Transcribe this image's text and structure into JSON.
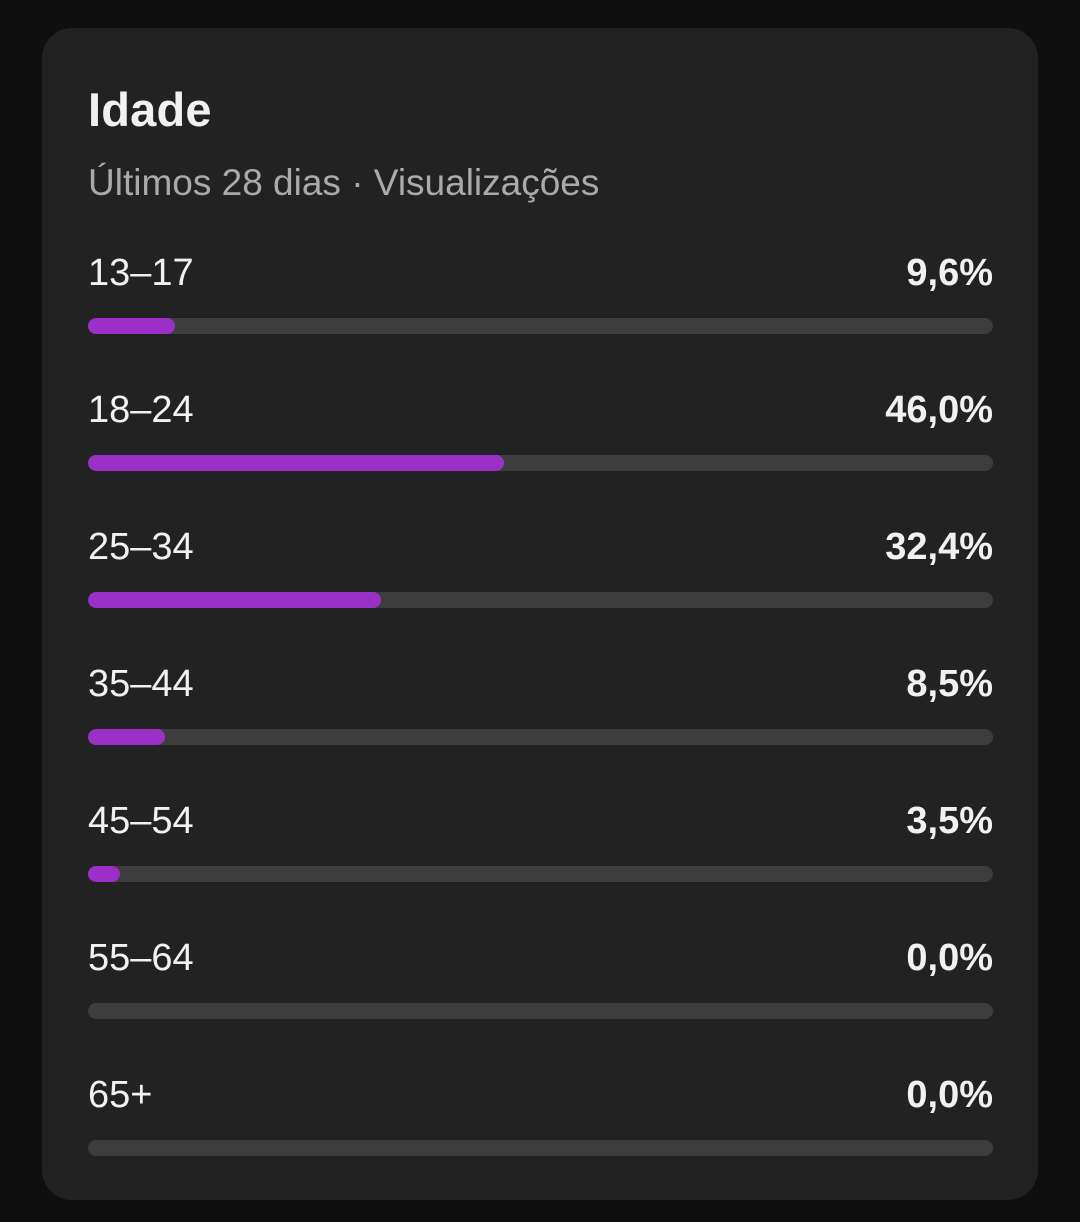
{
  "card": {
    "title": "Idade",
    "subtitle": "Últimos 28 dias · Visualizações"
  },
  "colors": {
    "bar_fill": "#9b30c8",
    "track": "#3d3d3d",
    "card_bg": "#222222"
  },
  "chart_data": {
    "type": "bar",
    "title": "Idade",
    "subtitle": "Últimos 28 dias · Visualizações",
    "categories": [
      "13–17",
      "18–24",
      "25–34",
      "35–44",
      "45–54",
      "55–64",
      "65+"
    ],
    "values": [
      9.6,
      46.0,
      32.4,
      8.5,
      3.5,
      0.0,
      0.0
    ],
    "value_labels": [
      "9,6%",
      "46,0%",
      "32,4%",
      "8,5%",
      "3,5%",
      "0,0%",
      "0,0%"
    ],
    "ylim": [
      0,
      100
    ],
    "orientation": "horizontal"
  }
}
